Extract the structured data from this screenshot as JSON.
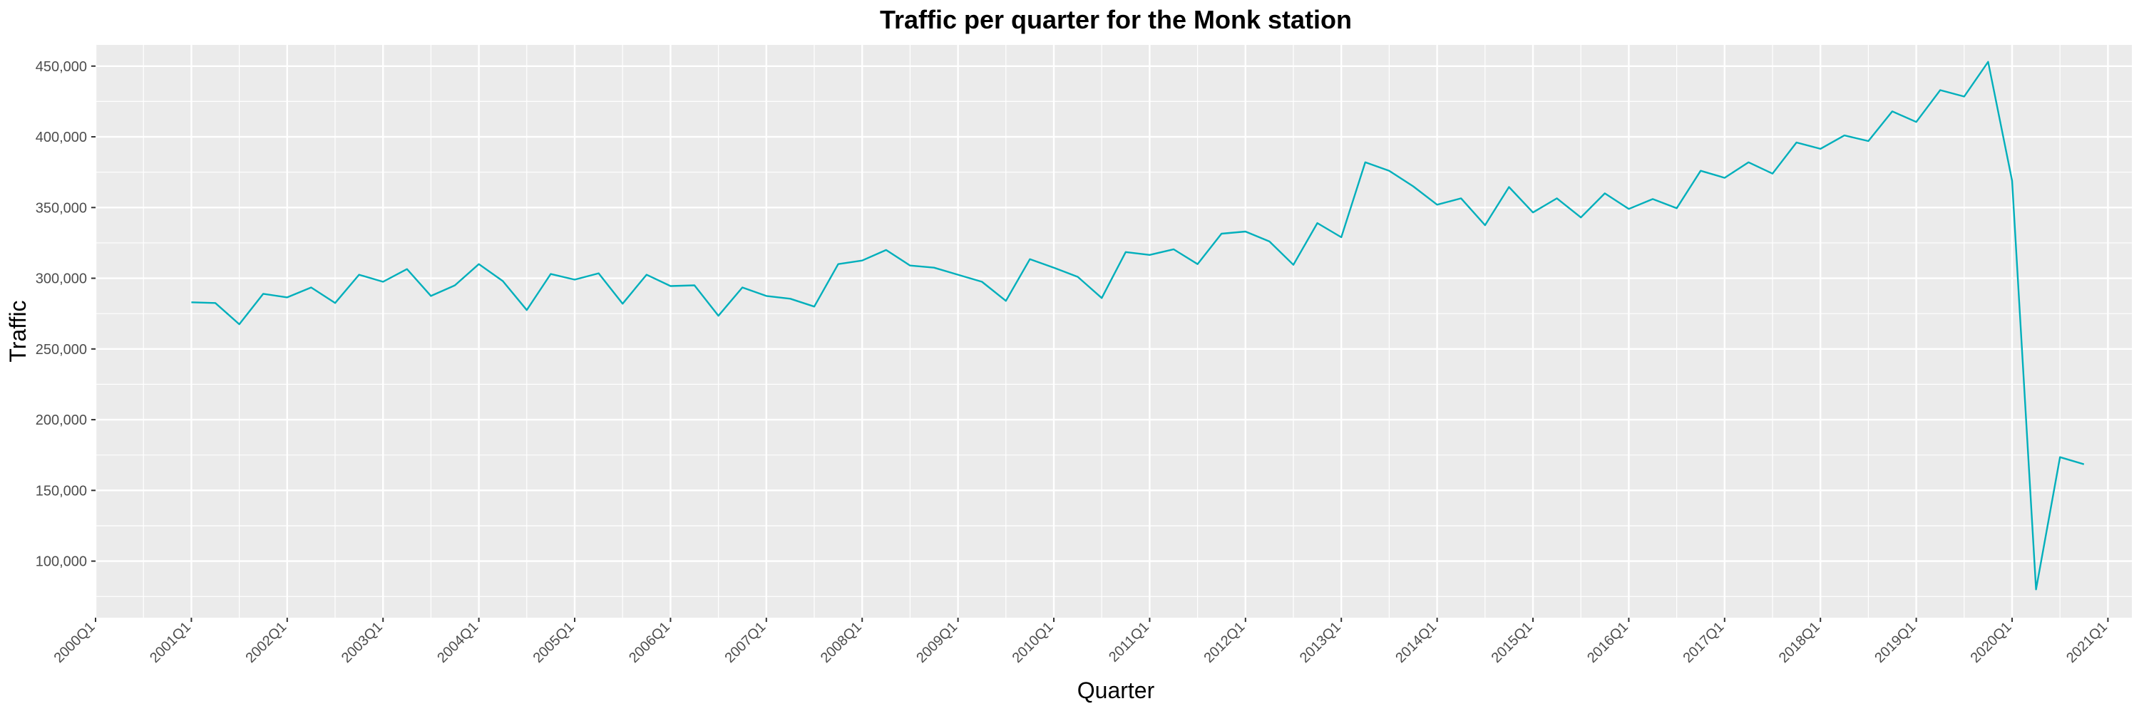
{
  "chart_data": {
    "type": "line",
    "title": "Traffic per quarter for the Monk station",
    "xlabel": "Quarter",
    "ylabel": "Traffic",
    "x_tick_labels": [
      "2000Q1",
      "2001Q1",
      "2002Q1",
      "2003Q1",
      "2004Q1",
      "2005Q1",
      "2006Q1",
      "2007Q1",
      "2008Q1",
      "2009Q1",
      "2010Q1",
      "2011Q1",
      "2012Q1",
      "2013Q1",
      "2014Q1",
      "2015Q1",
      "2016Q1",
      "2017Q1",
      "2018Q1",
      "2019Q1",
      "2020Q1",
      "2021Q1"
    ],
    "y_tick_values": [
      100000,
      150000,
      200000,
      250000,
      300000,
      350000,
      400000,
      450000
    ],
    "y_tick_labels": [
      "100,000",
      "150,000",
      "200,000",
      "250,000",
      "300,000",
      "350,000",
      "400,000",
      "450,000"
    ],
    "xlim": [
      "2000Q1",
      "2021Q2"
    ],
    "ylim": [
      60000,
      465000
    ],
    "grid": true,
    "series": [
      {
        "color": "#00AFBB",
        "x": [
          "2001Q1",
          "2001Q2",
          "2001Q3",
          "2001Q4",
          "2002Q1",
          "2002Q2",
          "2002Q3",
          "2002Q4",
          "2003Q1",
          "2003Q2",
          "2003Q3",
          "2003Q4",
          "2004Q1",
          "2004Q2",
          "2004Q3",
          "2004Q4",
          "2005Q1",
          "2005Q2",
          "2005Q3",
          "2005Q4",
          "2006Q1",
          "2006Q2",
          "2006Q3",
          "2006Q4",
          "2007Q1",
          "2007Q2",
          "2007Q3",
          "2007Q4",
          "2008Q1",
          "2008Q2",
          "2008Q3",
          "2008Q4",
          "2009Q1",
          "2009Q2",
          "2009Q3",
          "2009Q4",
          "2010Q1",
          "2010Q2",
          "2010Q3",
          "2010Q4",
          "2011Q1",
          "2011Q2",
          "2011Q3",
          "2011Q4",
          "2012Q1",
          "2012Q2",
          "2012Q3",
          "2012Q4",
          "2013Q1",
          "2013Q2",
          "2013Q3",
          "2013Q4",
          "2014Q1",
          "2014Q2",
          "2014Q3",
          "2014Q4",
          "2015Q1",
          "2015Q2",
          "2015Q3",
          "2015Q4",
          "2016Q1",
          "2016Q2",
          "2016Q3",
          "2016Q4",
          "2017Q1",
          "2017Q2",
          "2017Q3",
          "2017Q4",
          "2018Q1",
          "2018Q2",
          "2018Q3",
          "2018Q4",
          "2019Q1",
          "2019Q2",
          "2019Q3",
          "2019Q4",
          "2020Q1",
          "2020Q2",
          "2020Q3",
          "2020Q4"
        ],
        "values": [
          283000,
          282500,
          267500,
          289000,
          286500,
          293500,
          282500,
          302500,
          297500,
          306500,
          287500,
          295000,
          310000,
          298000,
          277500,
          303000,
          299000,
          303500,
          282000,
          302500,
          294500,
          295000,
          273500,
          293500,
          287500,
          285500,
          280000,
          310000,
          312500,
          320000,
          309000,
          307500,
          302500,
          297500,
          284000,
          313500,
          307500,
          301000,
          286000,
          318500,
          316500,
          320500,
          310000,
          331500,
          333000,
          326000,
          309500,
          339000,
          329000,
          382000,
          376000,
          365000,
          352000,
          356500,
          337500,
          364500,
          346500,
          356500,
          343000,
          360000,
          349000,
          356000,
          349500,
          376000,
          371000,
          382000,
          374000,
          396000,
          391500,
          401000,
          397000,
          418000,
          410500,
          433000,
          428500,
          453000,
          369000,
          80000,
          173500,
          168500
        ]
      }
    ]
  }
}
